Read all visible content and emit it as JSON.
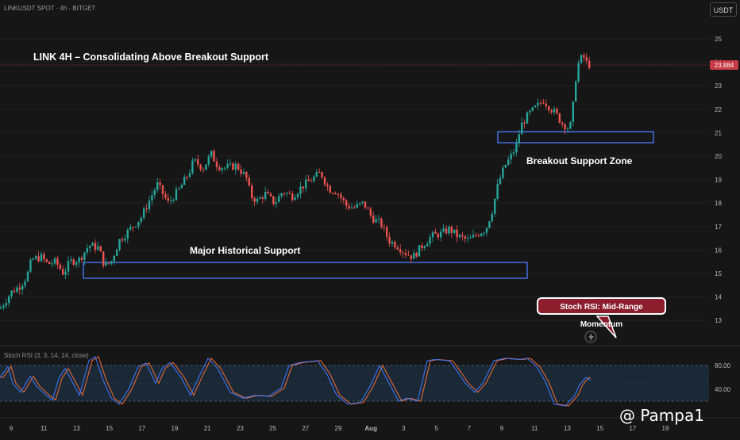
{
  "header": {
    "symbol": "LINKUSDT SPOT · 4h · BITGET",
    "currency": "USDT"
  },
  "annotations": {
    "title": "LINK 4H – Consolidating Above Breakout Support",
    "major_support": "Major Historical Support",
    "breakout_zone": "Breakout Support Zone",
    "callout": "Stoch RSI: Mid-Range Momentum"
  },
  "indicator": {
    "label": "Stoch RSI (3, 3, 14, 14, close)"
  },
  "watermark": "@ Pampa1",
  "chart_data": {
    "type": "candlestick",
    "price_axis": {
      "ticks": [
        13.0,
        14.0,
        15.0,
        16.0,
        17.0,
        18.0,
        19.0,
        20.0,
        21.0,
        22.0,
        23.0,
        24.0,
        25.0
      ],
      "range": [
        12.3,
        25.9
      ],
      "last_price": "23.884"
    },
    "stoch_axis": {
      "ticks": [
        "80.00",
        "40.00"
      ],
      "levels": [
        80,
        20
      ],
      "mid": 50
    },
    "x_axis": {
      "tick_labels": [
        "9",
        "11",
        "13",
        "15",
        "17",
        "19",
        "21",
        "23",
        "25",
        "27",
        "29",
        "Aug",
        "3",
        "5",
        "7",
        "9",
        "11",
        "13",
        "15",
        "17",
        "19"
      ]
    },
    "price_path": [
      [
        0,
        13.5
      ],
      [
        14,
        14.2
      ],
      [
        26,
        14.5
      ],
      [
        34,
        14.9
      ],
      [
        40,
        15.6
      ],
      [
        52,
        15.7
      ],
      [
        60,
        15.4
      ],
      [
        70,
        15.5
      ],
      [
        80,
        15.0
      ],
      [
        88,
        15.5
      ],
      [
        100,
        15.6
      ],
      [
        112,
        16.2
      ],
      [
        124,
        16.1
      ],
      [
        132,
        15.3
      ],
      [
        140,
        15.5
      ],
      [
        150,
        16.4
      ],
      [
        164,
        16.9
      ],
      [
        178,
        17.4
      ],
      [
        192,
        18.4
      ],
      [
        198,
        18.8
      ],
      [
        212,
        18.0
      ],
      [
        226,
        18.6
      ],
      [
        238,
        19.3
      ],
      [
        244,
        19.8
      ],
      [
        256,
        19.5
      ],
      [
        266,
        20.1
      ],
      [
        274,
        19.6
      ],
      [
        284,
        19.5
      ],
      [
        298,
        19.6
      ],
      [
        310,
        19.1
      ],
      [
        316,
        18.3
      ],
      [
        324,
        18.1
      ],
      [
        334,
        18.4
      ],
      [
        346,
        18.0
      ],
      [
        356,
        18.5
      ],
      [
        368,
        18.3
      ],
      [
        380,
        18.7
      ],
      [
        392,
        19.0
      ],
      [
        404,
        19.3
      ],
      [
        414,
        18.6
      ],
      [
        424,
        18.5
      ],
      [
        436,
        17.9
      ],
      [
        446,
        17.8
      ],
      [
        458,
        18.0
      ],
      [
        468,
        17.4
      ],
      [
        480,
        17.1
      ],
      [
        490,
        16.4
      ],
      [
        500,
        16.2
      ],
      [
        510,
        15.9
      ],
      [
        520,
        15.7
      ],
      [
        532,
        16.2
      ],
      [
        544,
        16.6
      ],
      [
        556,
        16.7
      ],
      [
        566,
        16.9
      ],
      [
        576,
        16.6
      ],
      [
        590,
        16.4
      ],
      [
        602,
        16.7
      ],
      [
        612,
        16.9
      ],
      [
        620,
        17.7
      ],
      [
        628,
        18.9
      ],
      [
        636,
        19.6
      ],
      [
        642,
        19.9
      ],
      [
        650,
        20.4
      ],
      [
        656,
        21.3
      ],
      [
        666,
        21.8
      ],
      [
        676,
        22.1
      ],
      [
        684,
        22.4
      ],
      [
        692,
        22.1
      ],
      [
        700,
        21.8
      ],
      [
        708,
        21.4
      ],
      [
        716,
        21.2
      ],
      [
        720,
        21.4
      ],
      [
        724,
        23.1
      ],
      [
        728,
        23.9
      ],
      [
        734,
        24.3
      ],
      [
        740,
        23.9
      ],
      [
        745,
        23.884
      ]
    ],
    "stoch_path": [
      [
        0,
        60
      ],
      [
        10,
        78
      ],
      [
        16,
        50
      ],
      [
        26,
        35
      ],
      [
        38,
        62
      ],
      [
        46,
        45
      ],
      [
        58,
        30
      ],
      [
        66,
        22
      ],
      [
        74,
        58
      ],
      [
        82,
        75
      ],
      [
        92,
        50
      ],
      [
        100,
        30
      ],
      [
        112,
        88
      ],
      [
        120,
        95
      ],
      [
        130,
        55
      ],
      [
        140,
        25
      ],
      [
        150,
        15
      ],
      [
        162,
        40
      ],
      [
        174,
        78
      ],
      [
        184,
        84
      ],
      [
        196,
        50
      ],
      [
        204,
        75
      ],
      [
        214,
        85
      ],
      [
        228,
        60
      ],
      [
        240,
        30
      ],
      [
        252,
        65
      ],
      [
        262,
        92
      ],
      [
        274,
        75
      ],
      [
        290,
        35
      ],
      [
        306,
        25
      ],
      [
        322,
        30
      ],
      [
        338,
        28
      ],
      [
        354,
        42
      ],
      [
        364,
        80
      ],
      [
        378,
        85
      ],
      [
        400,
        88
      ],
      [
        412,
        65
      ],
      [
        424,
        30
      ],
      [
        438,
        15
      ],
      [
        454,
        18
      ],
      [
        466,
        45
      ],
      [
        478,
        80
      ],
      [
        488,
        55
      ],
      [
        502,
        20
      ],
      [
        512,
        25
      ],
      [
        526,
        20
      ],
      [
        538,
        88
      ],
      [
        548,
        90
      ],
      [
        566,
        88
      ],
      [
        576,
        70
      ],
      [
        586,
        50
      ],
      [
        598,
        35
      ],
      [
        608,
        50
      ],
      [
        622,
        88
      ],
      [
        636,
        92
      ],
      [
        654,
        90
      ],
      [
        664,
        92
      ],
      [
        676,
        78
      ],
      [
        688,
        50
      ],
      [
        698,
        15
      ],
      [
        712,
        12
      ],
      [
        724,
        30
      ],
      [
        730,
        48
      ],
      [
        738,
        60
      ],
      [
        744,
        55
      ]
    ]
  }
}
